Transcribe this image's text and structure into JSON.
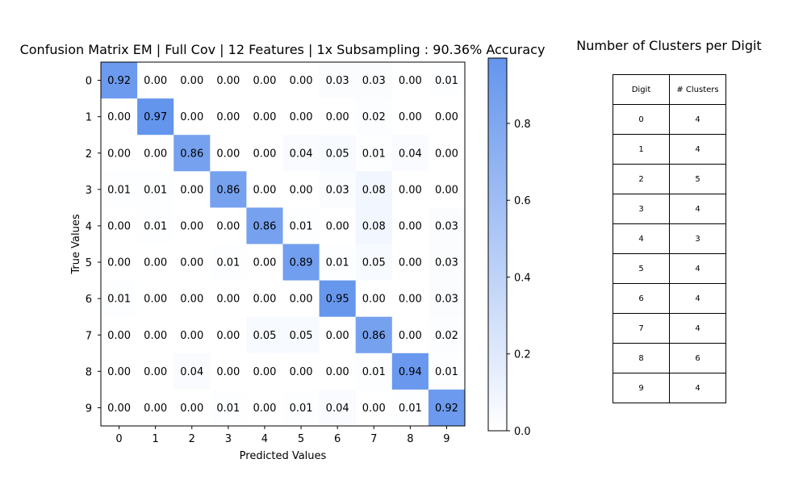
{
  "chart_data": [
    {
      "type": "heatmap",
      "title": "Confusion Matrix EM | Full Cov | 12 Features | 1x Subsampling : 90.36% Accuracy",
      "xlabel": "Predicted Values",
      "ylabel": "True Values",
      "x_categories": [
        "0",
        "1",
        "2",
        "3",
        "4",
        "5",
        "6",
        "7",
        "8",
        "9"
      ],
      "y_categories": [
        "0",
        "1",
        "2",
        "3",
        "4",
        "5",
        "6",
        "7",
        "8",
        "9"
      ],
      "values": [
        [
          0.92,
          0.0,
          0.0,
          0.0,
          0.0,
          0.0,
          0.03,
          0.03,
          0.0,
          0.01
        ],
        [
          0.0,
          0.97,
          0.0,
          0.0,
          0.0,
          0.0,
          0.0,
          0.02,
          0.0,
          0.0
        ],
        [
          0.0,
          0.0,
          0.86,
          0.0,
          0.0,
          0.04,
          0.05,
          0.01,
          0.04,
          0.0
        ],
        [
          0.01,
          0.01,
          0.0,
          0.86,
          0.0,
          0.0,
          0.03,
          0.08,
          0.0,
          0.0
        ],
        [
          0.0,
          0.01,
          0.0,
          0.0,
          0.86,
          0.01,
          0.0,
          0.08,
          0.0,
          0.03
        ],
        [
          0.0,
          0.0,
          0.0,
          0.01,
          0.0,
          0.89,
          0.01,
          0.05,
          0.0,
          0.03
        ],
        [
          0.01,
          0.0,
          0.0,
          0.0,
          0.0,
          0.0,
          0.95,
          0.0,
          0.0,
          0.03
        ],
        [
          0.0,
          0.0,
          0.0,
          0.0,
          0.05,
          0.05,
          0.0,
          0.86,
          0.0,
          0.02
        ],
        [
          0.0,
          0.0,
          0.04,
          0.0,
          0.0,
          0.0,
          0.0,
          0.01,
          0.94,
          0.01
        ],
        [
          0.0,
          0.0,
          0.0,
          0.01,
          0.0,
          0.01,
          0.04,
          0.0,
          0.01,
          0.92
        ]
      ],
      "colorbar": {
        "ticks": [
          0.0,
          0.2,
          0.4,
          0.6,
          0.8
        ],
        "tick_labels": [
          "0.0",
          "0.2",
          "0.4",
          "0.6",
          "0.8"
        ],
        "range": [
          0.0,
          0.97
        ],
        "color_min": "#ffffff",
        "color_max": "#6495ed"
      }
    },
    {
      "type": "table",
      "title": "Number of Clusters per Digit",
      "columns": [
        "Digit",
        "# Clusters"
      ],
      "rows": [
        [
          "0",
          "4"
        ],
        [
          "1",
          "4"
        ],
        [
          "2",
          "5"
        ],
        [
          "3",
          "4"
        ],
        [
          "4",
          "3"
        ],
        [
          "5",
          "4"
        ],
        [
          "6",
          "4"
        ],
        [
          "7",
          "4"
        ],
        [
          "8",
          "6"
        ],
        [
          "9",
          "4"
        ]
      ]
    }
  ]
}
